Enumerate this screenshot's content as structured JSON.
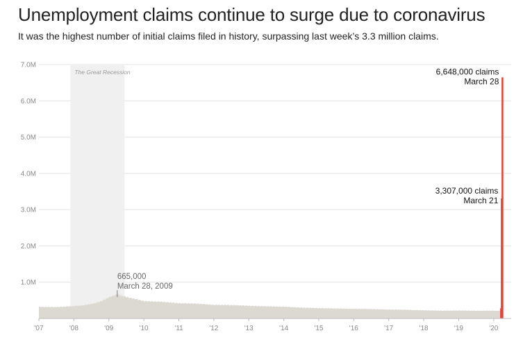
{
  "header": {
    "title": "Unemployment claims continue to surge due to coronavirus",
    "subtitle": "It was the highest number of initial claims filed in history, surpassing last week’s 3.3 million claims."
  },
  "chart_data": {
    "type": "bar",
    "title": "Unemployment claims continue to surge due to coronavirus",
    "subtitle": "It was the highest number of initial claims filed in history, surpassing last week’s 3.3 million claims.",
    "xlabel": "",
    "ylabel": "",
    "ylim": [
      0,
      7000000
    ],
    "xlim": [
      2007.0,
      2020.5
    ],
    "grid": true,
    "y_ticks": [
      {
        "value": 1000000,
        "label": "1.0M"
      },
      {
        "value": 2000000,
        "label": "2.0M"
      },
      {
        "value": 3000000,
        "label": "3.0M"
      },
      {
        "value": 4000000,
        "label": "4.0M"
      },
      {
        "value": 5000000,
        "label": "5.0M"
      },
      {
        "value": 6000000,
        "label": "6.0M"
      },
      {
        "value": 7000000,
        "label": "7.0M"
      }
    ],
    "x_ticks": [
      {
        "value": 2007,
        "label": "'07"
      },
      {
        "value": 2008,
        "label": "'08"
      },
      {
        "value": 2009,
        "label": "'09"
      },
      {
        "value": 2010,
        "label": "'10"
      },
      {
        "value": 2011,
        "label": "'11"
      },
      {
        "value": 2012,
        "label": "'12"
      },
      {
        "value": 2013,
        "label": "'13"
      },
      {
        "value": 2014,
        "label": "'14"
      },
      {
        "value": 2015,
        "label": "'15"
      },
      {
        "value": 2016,
        "label": "'16"
      },
      {
        "value": 2017,
        "label": "'17"
      },
      {
        "value": 2018,
        "label": "'18"
      },
      {
        "value": 2019,
        "label": "'19"
      },
      {
        "value": 2020,
        "label": "'20"
      }
    ],
    "shaded_region": {
      "label": "The Great Recession",
      "start": 2007.9,
      "end": 2009.45,
      "color": "#f0f0f0"
    },
    "series": [
      {
        "color": "#dcd8d2",
        "points": [
          [
            2007.0,
            320000
          ],
          [
            2007.5,
            315000
          ],
          [
            2007.9,
            335000
          ],
          [
            2008.3,
            365000
          ],
          [
            2008.6,
            420000
          ],
          [
            2008.8,
            480000
          ],
          [
            2009.0,
            580000
          ],
          [
            2009.24,
            665000
          ],
          [
            2009.5,
            590000
          ],
          [
            2009.8,
            530000
          ],
          [
            2010.0,
            480000
          ],
          [
            2010.5,
            460000
          ],
          [
            2011.0,
            420000
          ],
          [
            2011.5,
            410000
          ],
          [
            2012.0,
            375000
          ],
          [
            2012.5,
            370000
          ],
          [
            2013.0,
            350000
          ],
          [
            2013.5,
            335000
          ],
          [
            2014.0,
            325000
          ],
          [
            2014.5,
            300000
          ],
          [
            2015.0,
            285000
          ],
          [
            2015.5,
            275000
          ],
          [
            2016.0,
            265000
          ],
          [
            2016.5,
            260000
          ],
          [
            2017.0,
            245000
          ],
          [
            2017.5,
            240000
          ],
          [
            2018.0,
            225000
          ],
          [
            2018.5,
            215000
          ],
          [
            2019.0,
            220000
          ],
          [
            2019.5,
            212000
          ],
          [
            2020.0,
            215000
          ],
          [
            2020.2,
            211000
          ]
        ]
      },
      {
        "color": "#e0473b",
        "points": [
          [
            2020.21,
            282000
          ],
          [
            2020.23,
            3307000
          ],
          [
            2020.25,
            6648000
          ]
        ]
      }
    ],
    "annotations": [
      {
        "x": 2009.24,
        "y": 665000,
        "value_text": "665,000",
        "date_text": "March 28, 2009"
      },
      {
        "x": 2020.23,
        "y": 3307000,
        "value_text": "3,307,000 claims",
        "date_text": "March 21"
      },
      {
        "x": 2020.25,
        "y": 6648000,
        "value_text": "6,648,000 claims",
        "date_text": "March 28"
      }
    ]
  }
}
